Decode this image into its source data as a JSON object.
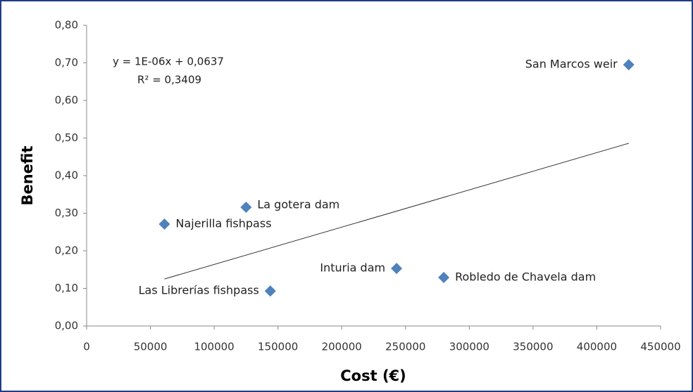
{
  "chart_data": {
    "type": "scatter",
    "xlabel": "Cost (€)",
    "ylabel": "Benefit",
    "equation": "y = 1E-06x + 0,0637",
    "r_squared": "R² = 0,3409",
    "series": [
      {
        "color": "#4f81bd",
        "labels": [
          "San Marcos weir",
          "La gotera dam",
          "Najerilla fishpass",
          "Inturia dam",
          "Robledo de Chavela dam",
          "Las Librerías fishpass"
        ],
        "x": [
          425000,
          125000,
          61000,
          243000,
          280000,
          144000
        ],
        "values": [
          0.695,
          0.316,
          0.271,
          0.153,
          0.129,
          0.093
        ]
      }
    ],
    "trendline": {
      "x": [
        61000,
        425000
      ],
      "values": [
        0.125,
        0.486
      ],
      "color": "#333333"
    },
    "xlim": [
      0,
      450000
    ],
    "xticks": [
      0,
      50000,
      100000,
      150000,
      200000,
      250000,
      300000,
      350000,
      400000,
      450000
    ],
    "ylim": [
      0,
      0.8
    ],
    "yticks": [
      {
        "value": 0,
        "label": "0,00"
      },
      {
        "value": 0.1,
        "label": "0,10"
      },
      {
        "value": 0.2,
        "label": "0,20"
      },
      {
        "value": 0.3,
        "label": "0,30"
      },
      {
        "value": 0.4,
        "label": "0,40"
      },
      {
        "value": 0.5,
        "label": "0,50"
      },
      {
        "value": 0.6,
        "label": "0,60"
      },
      {
        "value": 0.7,
        "label": "0,70"
      },
      {
        "value": 0.8,
        "label": "0,80"
      }
    ],
    "grid": false
  }
}
